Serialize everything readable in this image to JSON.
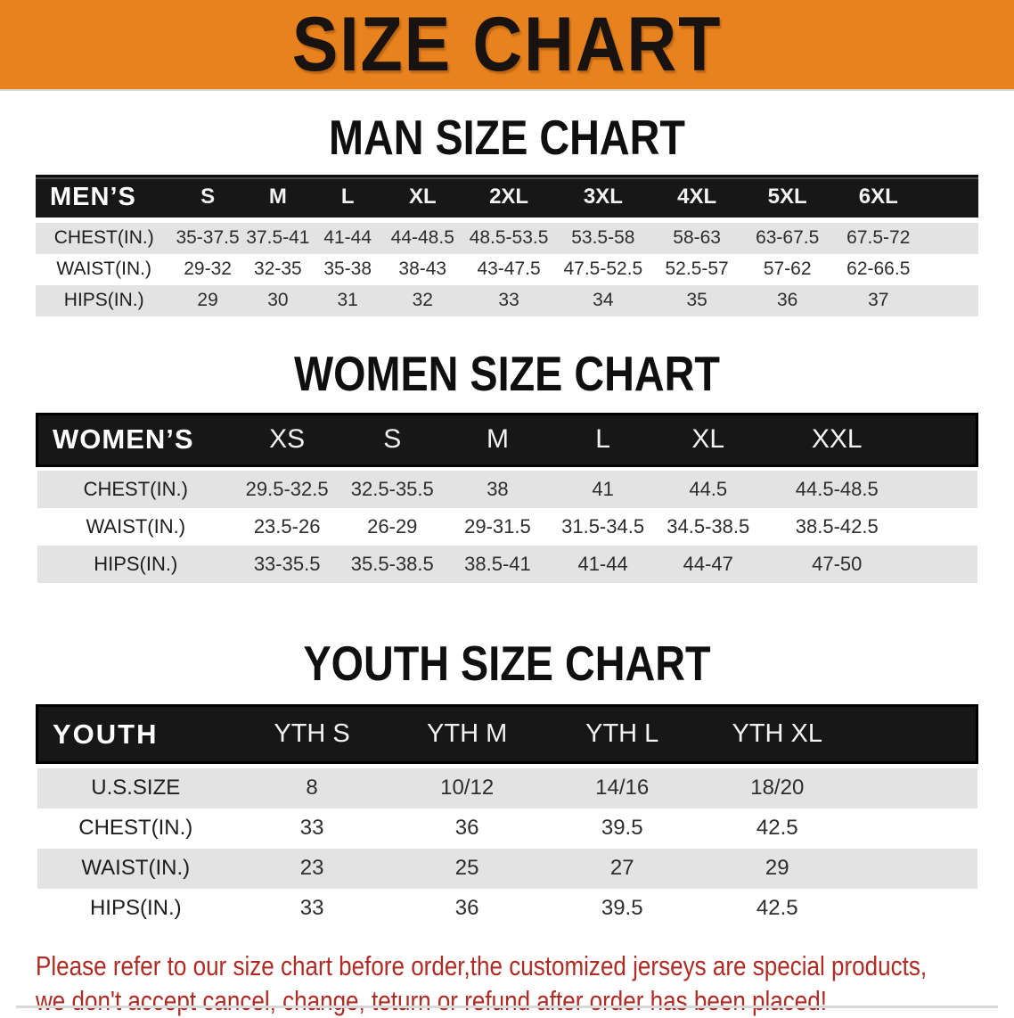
{
  "banner": {
    "title": "SIZE CHART",
    "bg_color": "#E8821E",
    "text_color": "#181210"
  },
  "colors": {
    "table_header_bg": "#171717",
    "table_header_text": "#FFFFFF",
    "row_stripe_gray": "#E3E3E3",
    "disclaimer_red": "#AF2B24"
  },
  "sections": [
    {
      "heading": "MAN SIZE CHART",
      "group_label": "MEN’S",
      "columns": [
        "S",
        "M",
        "L",
        "XL",
        "2XL",
        "3XL",
        "4XL",
        "5XL",
        "6XL"
      ],
      "rows": [
        {
          "label": "CHEST(IN.)",
          "values": [
            "35-37.5",
            "37.5-41",
            "41-44",
            "44-48.5",
            "48.5-53.5",
            "53.5-58",
            "58-63",
            "63-67.5",
            "67.5-72"
          ]
        },
        {
          "label": "WAIST(IN.)",
          "values": [
            "29-32",
            "32-35",
            "35-38",
            "38-43",
            "43-47.5",
            "47.5-52.5",
            "52.5-57",
            "57-62",
            "62-66.5"
          ]
        },
        {
          "label": "HIPS(IN.)",
          "values": [
            "29",
            "30",
            "31",
            "32",
            "33",
            "34",
            "35",
            "36",
            "37"
          ]
        }
      ]
    },
    {
      "heading": "WOMEN SIZE CHART",
      "group_label": "WOMEN’S",
      "columns": [
        "XS",
        "S",
        "M",
        "L",
        "XL",
        "XXL"
      ],
      "rows": [
        {
          "label": "CHEST(IN.)",
          "values": [
            "29.5-32.5",
            "32.5-35.5",
            "38",
            "41",
            "44.5",
            "44.5-48.5"
          ]
        },
        {
          "label": "WAIST(IN.)",
          "values": [
            "23.5-26",
            "26-29",
            "29-31.5",
            "31.5-34.5",
            "34.5-38.5",
            "38.5-42.5"
          ]
        },
        {
          "label": "HIPS(IN.)",
          "values": [
            "33-35.5",
            "35.5-38.5",
            "38.5-41",
            "41-44",
            "44-47",
            "47-50"
          ]
        }
      ]
    },
    {
      "heading": "YOUTH SIZE CHART",
      "group_label": "YOUTH",
      "columns": [
        "YTH S",
        "YTH M",
        "YTH L",
        "YTH XL"
      ],
      "rows": [
        {
          "label": "U.S.SIZE",
          "values": [
            "8",
            "10/12",
            "14/16",
            "18/20"
          ]
        },
        {
          "label": "CHEST(IN.)",
          "values": [
            "33",
            "36",
            "39.5",
            "42.5"
          ]
        },
        {
          "label": "WAIST(IN.)",
          "values": [
            "23",
            "25",
            "27",
            "29"
          ]
        },
        {
          "label": "HIPS(IN.)",
          "values": [
            "33",
            "36",
            "39.5",
            "42.5"
          ]
        }
      ]
    }
  ],
  "disclaimer": {
    "line1": "Please refer to our size chart before order,the customized jerseys are special products,",
    "line2": "we don't accept cancel, change, teturn or refund after order has been placed!"
  }
}
